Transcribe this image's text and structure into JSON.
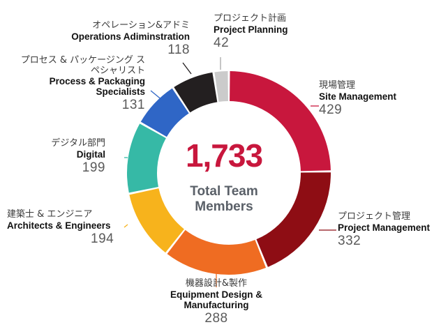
{
  "chart_data": {
    "type": "donut",
    "total": "1,733",
    "center_caption": "Total Team Members",
    "categories": [
      {
        "jp": "現場管理",
        "en": "Site Management",
        "value": 429,
        "label_value": "429",
        "color": "#c8173d"
      },
      {
        "jp": "プロジェクト管理",
        "en": "Project Management",
        "value": 332,
        "label_value": "332",
        "color": "#8e0d14"
      },
      {
        "jp": "機器設計&製作",
        "en": "Equipment Design & Manufacturing",
        "value": 288,
        "label_value": "288",
        "color": "#ef6c22"
      },
      {
        "jp": "建築士 & エンジニア",
        "en": "Architects & Engineers",
        "value": 194,
        "label_value": "194",
        "color": "#f7b31c"
      },
      {
        "jp": "デジタル部門",
        "en": "Digital",
        "value": 199,
        "label_value": "199",
        "color": "#36b9a6"
      },
      {
        "jp": "プロセス & パッケージング スペシャリスト",
        "en": "Process & Packaging Specialists",
        "value": 131,
        "label_value": "131",
        "color": "#2f66c6"
      },
      {
        "jp": "オペレーション&アドミ",
        "en": "Operations Adiminstration",
        "value": 118,
        "label_value": "118",
        "color": "#231f20"
      },
      {
        "jp": "プロジェクト計画",
        "en": "Project Planning",
        "value": 42,
        "label_value": "42",
        "color": "#cbcbcb"
      }
    ]
  }
}
